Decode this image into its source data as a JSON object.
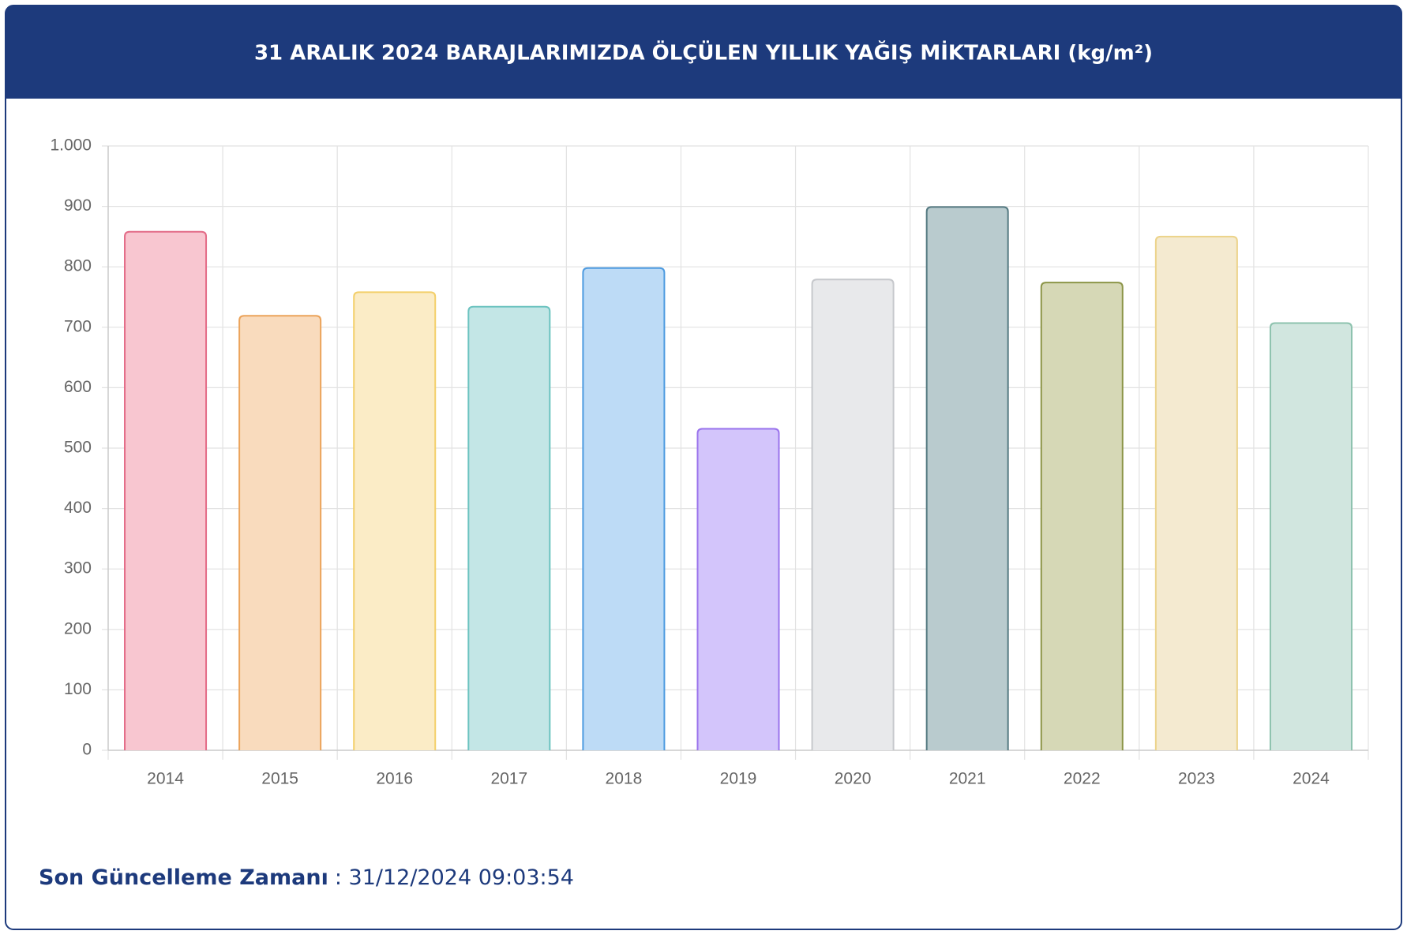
{
  "chart_data": {
    "type": "bar",
    "title": "31 ARALIK 2024 BARAJLARIMIZDA ÖLÇÜLEN YILLIK YAĞIŞ MİKTARLARI (kg/m²)",
    "categories": [
      "2014",
      "2015",
      "2016",
      "2017",
      "2018",
      "2019",
      "2020",
      "2021",
      "2022",
      "2023",
      "2024"
    ],
    "values": [
      858,
      719,
      758,
      734,
      798,
      532,
      779,
      899,
      774,
      850,
      707
    ],
    "colors": [
      "#f8c6d0",
      "#f9dbbd",
      "#fbecc6",
      "#c3e6e6",
      "#bddbf6",
      "#d3c5fb",
      "#e8e9eb",
      "#b9cbce",
      "#d6d8b6",
      "#f4ead0",
      "#d1e6df"
    ],
    "border_colors": [
      "#e36b87",
      "#eba35a",
      "#f3cf6a",
      "#6cc3c0",
      "#4e9be0",
      "#9a73ec",
      "#c6c8cc",
      "#557a82",
      "#8c9548",
      "#ecd38a",
      "#8dc2ae"
    ],
    "ylim": [
      0,
      1000
    ],
    "yticks": [
      0,
      100,
      200,
      300,
      400,
      500,
      600,
      700,
      800,
      900,
      {
        "value": 1000,
        "label": "1.000"
      }
    ],
    "grid": true
  },
  "footer": {
    "label": "Son Güncelleme Zamanı",
    "value": ": 31/12/2024 09:03:54"
  }
}
